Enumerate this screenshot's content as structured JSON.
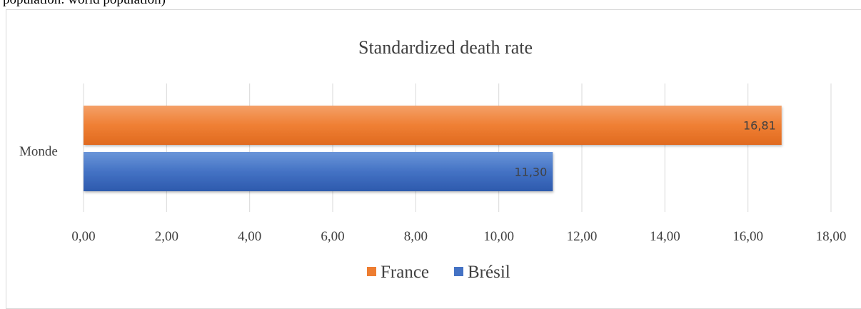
{
  "caption": "population: world population)",
  "chart_data": {
    "type": "bar",
    "orientation": "horizontal",
    "title": "Standardized death rate",
    "categories": [
      "Monde"
    ],
    "series": [
      {
        "name": "France",
        "values": [
          16.81
        ],
        "labels": [
          "16,81"
        ],
        "color": "#ed7d31"
      },
      {
        "name": "Brésil",
        "values": [
          11.3
        ],
        "labels": [
          "11,30"
        ],
        "color": "#4472c4"
      }
    ],
    "xlim": [
      0,
      18
    ],
    "xticks": [
      0,
      2,
      4,
      6,
      8,
      10,
      12,
      14,
      16,
      18
    ],
    "xtick_labels": [
      "0,00",
      "2,00",
      "4,00",
      "6,00",
      "8,00",
      "10,00",
      "12,00",
      "14,00",
      "16,00",
      "18,00"
    ],
    "grid": true,
    "legend_position": "bottom"
  }
}
